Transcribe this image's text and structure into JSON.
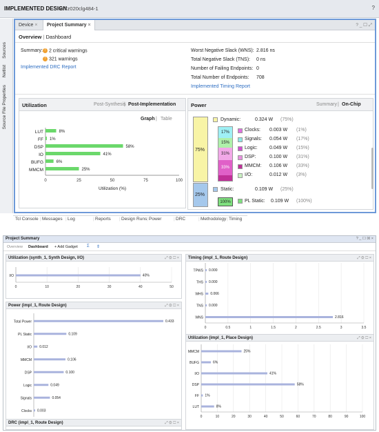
{
  "top": {
    "title": "IMPLEMENTED DESIGN",
    "part": "xc7z020clg484-1",
    "help": "?"
  },
  "sidebar": [
    "Sources",
    "Netlist",
    "Source File Properties"
  ],
  "tabs": {
    "device": "Device",
    "project_summary": "Project Summary",
    "close": "×"
  },
  "subtabs": {
    "overview": "Overview",
    "dashboard": "Dashboard"
  },
  "summary": {
    "label": "Summary:",
    "crit": "2 critical warnings",
    "warn": "321 warnings",
    "drc_link": "Implemented DRC Report"
  },
  "timing": {
    "rows": [
      {
        "k": "Worst Negative Slack (WNS):",
        "v": "2.816 ns"
      },
      {
        "k": "Total Negative Slack (TNS):",
        "v": "0 ns"
      },
      {
        "k": "Number of Failing Endpoints:",
        "v": "0"
      },
      {
        "k": "Total Number of Endpoints:",
        "v": "708"
      }
    ],
    "link": "Implemented Timing Report"
  },
  "util": {
    "title": "Utilization",
    "post_synth": "Post-Synthesis",
    "post_impl": "Post-Implementation",
    "graph": "Graph",
    "table": "Table",
    "xlabel": "Utilization (%)"
  },
  "util_chart": {
    "type": "bar",
    "categories": [
      "LUT",
      "FF",
      "DSP",
      "IO",
      "BUFG",
      "MMCM"
    ],
    "values": [
      8,
      1,
      58,
      41,
      6,
      25
    ],
    "labels": [
      "8%",
      "1%",
      "58%",
      "41%",
      "6%",
      "25%"
    ],
    "ticks": [
      "0",
      "25",
      "50",
      "75",
      "100"
    ],
    "xlim": [
      0,
      100
    ]
  },
  "power": {
    "title": "Power",
    "summary": "Summary",
    "onchip": "On-Chip",
    "dyn_pct": "75%",
    "stat_pct": "25%",
    "inner_pct": "100%",
    "dynamic": {
      "name": "Dynamic:",
      "w": "0.324 W",
      "p": "(75%)"
    },
    "items": [
      {
        "pct": "17%",
        "name": "Clocks:",
        "w": "0.003 W",
        "p": "(1%)",
        "color": "#e070e0",
        "bg": "#9ff0f5"
      },
      {
        "pct": "15%",
        "name": "Signals:",
        "w": "0.054 W",
        "p": "(17%)",
        "color": "#8fe8e8",
        "bg": "#aff0aa"
      },
      {
        "pct": "31%",
        "name": "Logic:",
        "w": "0.049 W",
        "p": "(15%)",
        "color": "#d050d0",
        "bg": "#f2a8e8"
      },
      {
        "pct": "33%",
        "name": "DSP:",
        "w": "0.100 W",
        "p": "(31%)",
        "color": "#e890e0",
        "bg": "#e060c8"
      },
      {
        "pct": "",
        "name": "MMCM:",
        "w": "0.106 W",
        "p": "(33%)",
        "color": "#c03098",
        "bg": "#c03098"
      },
      {
        "pct": "",
        "name": "I/O:",
        "w": "0.012 W",
        "p": "(3%)",
        "color": "#c8f0c0",
        "bg": "#c8f0c0"
      }
    ],
    "static": {
      "name": "Static:",
      "w": "0.109 W",
      "p": "(25%)"
    },
    "plstatic": {
      "name": "PL Static:",
      "w": "0.109 W",
      "p": "(100%)"
    }
  },
  "bottom_tabs": [
    "Tcl Console",
    "Messages",
    "Log",
    "Reports",
    "Design Runs",
    "Power",
    "DRC",
    "Methodology",
    "Timing"
  ],
  "ps": {
    "title": "Project Summary",
    "icons": "? _ ☐ ☒ ×",
    "overview": "Overview",
    "dashboard": "Dashboard",
    "add": "+ Add Gadget"
  },
  "chart_data": [
    {
      "type": "bar",
      "title": "Utilization (synth_1, Synth Design, I/O)",
      "categories": [
        "I/O"
      ],
      "values": [
        40
      ],
      "labels": [
        "40%"
      ],
      "ticks": [
        "0",
        "10",
        "20",
        "30",
        "40",
        "50"
      ],
      "xlim": [
        0,
        50
      ]
    },
    {
      "type": "bar",
      "title": "Power (impl_1, Route Design)",
      "categories": [
        "Total Power",
        "PL Static",
        "I/O",
        "MMCM",
        "DSP",
        "Logic",
        "Signals",
        "Clocks"
      ],
      "values": [
        0.433,
        0.109,
        0.012,
        0.106,
        0.1,
        0.049,
        0.054,
        0.003
      ],
      "labels": [
        "0.433",
        "0.109",
        "0.012",
        "0.106",
        "0.100",
        "0.049",
        "0.054",
        "0.003"
      ]
    },
    {
      "type": "bar",
      "title": "Timing (impl_1, Route Design)",
      "categories": [
        "TPWS",
        "THS",
        "WHS",
        "TNS",
        "WNS"
      ],
      "values": [
        0,
        0,
        0.066,
        0,
        2.816
      ],
      "labels": [
        "0.000",
        "0.000",
        "0.066",
        "0.000",
        "2.816"
      ],
      "ticks": [
        "0",
        "0.5",
        "1",
        "1.5",
        "2",
        "2.5",
        "3",
        "3.5"
      ],
      "xlim": [
        0,
        3.5
      ]
    },
    {
      "type": "bar",
      "title": "Utilization (impl_1, Place Design)",
      "categories": [
        "MMCM",
        "BUFG",
        "I/O",
        "DSP",
        "FF",
        "LUT"
      ],
      "values": [
        25,
        6,
        41,
        58,
        1,
        8
      ],
      "labels": [
        "25%",
        "6%",
        "41%",
        "58%",
        "1%",
        "8%"
      ],
      "ticks": [
        "0",
        "10",
        "20",
        "30",
        "40",
        "50",
        "60",
        "70",
        "80",
        "90",
        "100"
      ],
      "xlim": [
        0,
        100
      ]
    }
  ],
  "drc_title": "DRC (impl_1, Route Design)"
}
